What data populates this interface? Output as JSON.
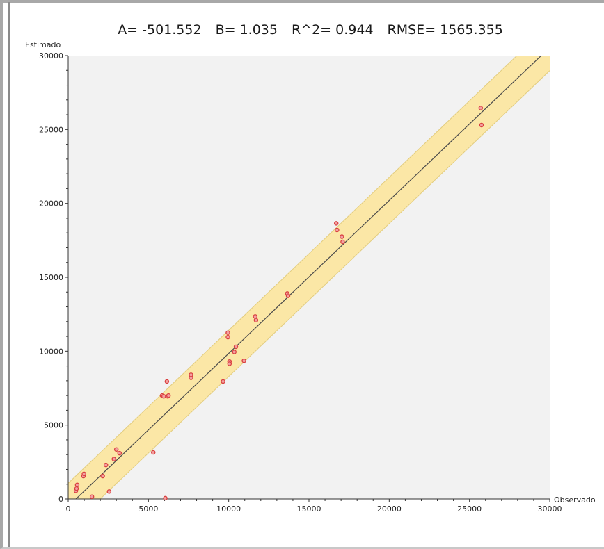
{
  "chart_data": {
    "type": "scatter",
    "title_parts": [
      "A= -501.552",
      "B= 1.035",
      "R^2= 0.944",
      "RMSE= 1565.355"
    ],
    "xlabel": "Observado",
    "ylabel": "Estimado",
    "xlim": [
      0,
      30000
    ],
    "ylim": [
      0,
      30000
    ],
    "xticks": [
      0,
      5000,
      10000,
      15000,
      20000,
      25000,
      30000
    ],
    "yticks": [
      0,
      5000,
      10000,
      15000,
      20000,
      25000,
      30000
    ],
    "regression": {
      "intercept": -501.552,
      "slope": 1.035
    },
    "band_halfwidth": 1565.355,
    "grid": false,
    "colors": {
      "plot_bg": "#f2f2f2",
      "band": "#fbe7a6",
      "band_edge": "#e2cc7e",
      "line": "#4a4a4a",
      "point": "#d94040"
    },
    "points": [
      [
        480,
        550
      ],
      [
        520,
        700
      ],
      [
        560,
        950
      ],
      [
        950,
        1550
      ],
      [
        980,
        1700
      ],
      [
        1480,
        150
      ],
      [
        2150,
        1550
      ],
      [
        2350,
        2300
      ],
      [
        2550,
        500
      ],
      [
        2850,
        2700
      ],
      [
        3000,
        3350
      ],
      [
        3200,
        3100
      ],
      [
        5300,
        3150
      ],
      [
        5850,
        7000
      ],
      [
        5950,
        6950
      ],
      [
        6050,
        50
      ],
      [
        6150,
        7950
      ],
      [
        6200,
        6950
      ],
      [
        6250,
        7000
      ],
      [
        7650,
        8200
      ],
      [
        7650,
        8400
      ],
      [
        9650,
        7950
      ],
      [
        9950,
        11250
      ],
      [
        9950,
        10950
      ],
      [
        10050,
        9300
      ],
      [
        10050,
        9150
      ],
      [
        10350,
        9950
      ],
      [
        10450,
        10300
      ],
      [
        10950,
        9350
      ],
      [
        11650,
        12350
      ],
      [
        11700,
        12100
      ],
      [
        13650,
        13900
      ],
      [
        13700,
        13750
      ],
      [
        16700,
        18650
      ],
      [
        16750,
        18200
      ],
      [
        17050,
        17750
      ],
      [
        17100,
        17400
      ],
      [
        25700,
        26450
      ],
      [
        25750,
        25300
      ]
    ]
  }
}
